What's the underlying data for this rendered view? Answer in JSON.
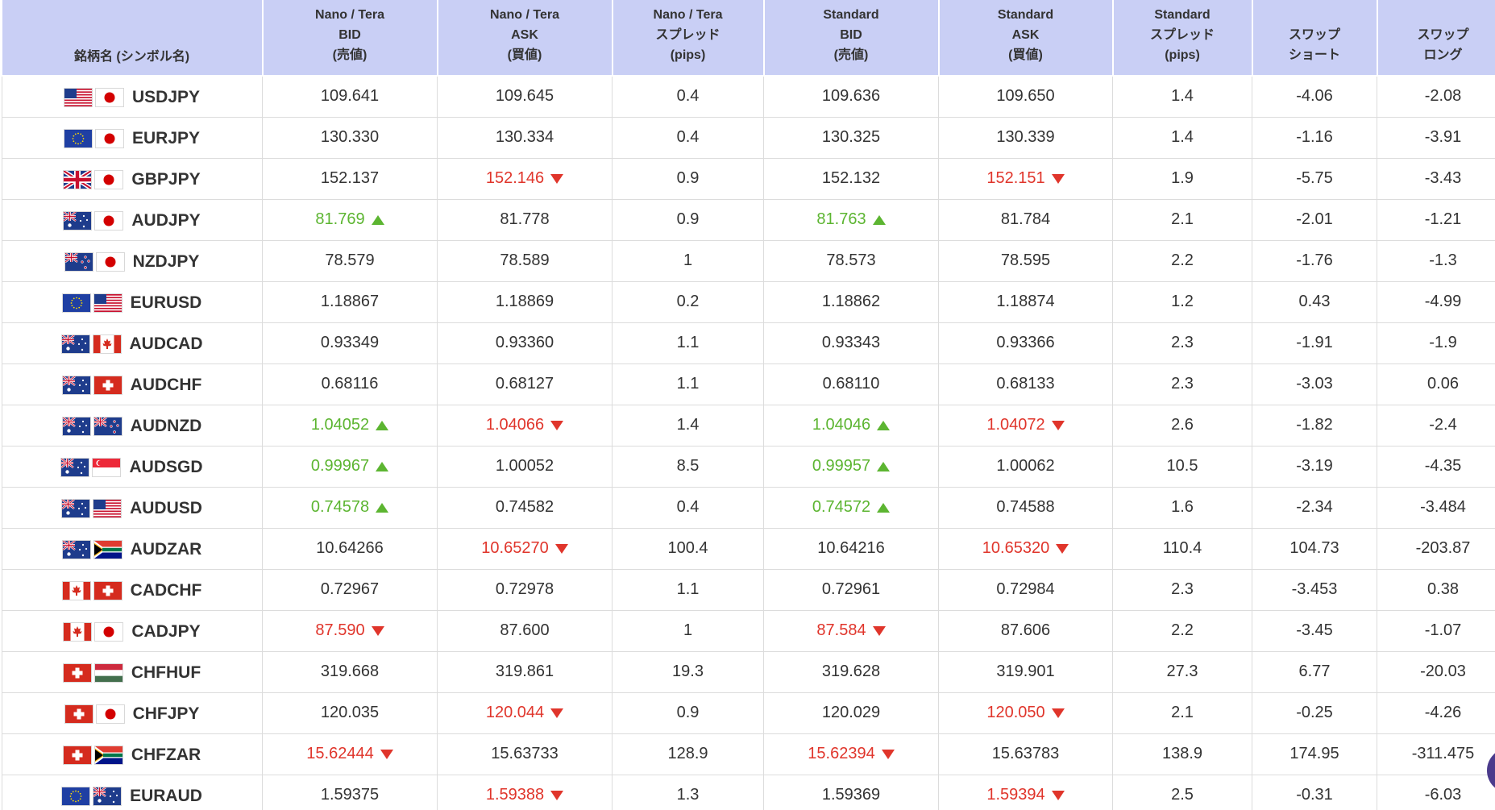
{
  "headers": [
    {
      "lines": [
        "銘柄名 (シンボル名)"
      ]
    },
    {
      "lines": [
        "Nano / Tera",
        "BID",
        "(売値)"
      ]
    },
    {
      "lines": [
        "Nano / Tera",
        "ASK",
        "(買値)"
      ]
    },
    {
      "lines": [
        "Nano / Tera",
        "スプレッド",
        "(pips)"
      ]
    },
    {
      "lines": [
        "Standard",
        "BID",
        "(売値)"
      ]
    },
    {
      "lines": [
        "Standard",
        "ASK",
        "(買値)"
      ]
    },
    {
      "lines": [
        "Standard",
        "スプレッド",
        "(pips)"
      ]
    },
    {
      "lines": [
        "スワップ",
        "ショート"
      ]
    },
    {
      "lines": [
        "スワップ",
        "ロング"
      ]
    }
  ],
  "rows": [
    {
      "symbol": "USDJPY",
      "flags": [
        "us-flag-icon",
        "jp-flag-icon"
      ],
      "cells": [
        {
          "v": "109.641",
          "d": ""
        },
        {
          "v": "109.645",
          "d": ""
        },
        {
          "v": "0.4",
          "d": ""
        },
        {
          "v": "109.636",
          "d": ""
        },
        {
          "v": "109.650",
          "d": ""
        },
        {
          "v": "1.4",
          "d": ""
        },
        {
          "v": "-4.06",
          "d": ""
        },
        {
          "v": "-2.08",
          "d": ""
        }
      ]
    },
    {
      "symbol": "EURJPY",
      "flags": [
        "eu-flag-icon",
        "jp-flag-icon"
      ],
      "cells": [
        {
          "v": "130.330",
          "d": ""
        },
        {
          "v": "130.334",
          "d": ""
        },
        {
          "v": "0.4",
          "d": ""
        },
        {
          "v": "130.325",
          "d": ""
        },
        {
          "v": "130.339",
          "d": ""
        },
        {
          "v": "1.4",
          "d": ""
        },
        {
          "v": "-1.16",
          "d": ""
        },
        {
          "v": "-3.91",
          "d": ""
        }
      ]
    },
    {
      "symbol": "GBPJPY",
      "flags": [
        "gb-flag-icon",
        "jp-flag-icon"
      ],
      "cells": [
        {
          "v": "152.137",
          "d": ""
        },
        {
          "v": "152.146",
          "d": "down"
        },
        {
          "v": "0.9",
          "d": ""
        },
        {
          "v": "152.132",
          "d": ""
        },
        {
          "v": "152.151",
          "d": "down"
        },
        {
          "v": "1.9",
          "d": ""
        },
        {
          "v": "-5.75",
          "d": ""
        },
        {
          "v": "-3.43",
          "d": ""
        }
      ]
    },
    {
      "symbol": "AUDJPY",
      "flags": [
        "au-flag-icon",
        "jp-flag-icon"
      ],
      "cells": [
        {
          "v": "81.769",
          "d": "up"
        },
        {
          "v": "81.778",
          "d": ""
        },
        {
          "v": "0.9",
          "d": ""
        },
        {
          "v": "81.763",
          "d": "up"
        },
        {
          "v": "81.784",
          "d": ""
        },
        {
          "v": "2.1",
          "d": ""
        },
        {
          "v": "-2.01",
          "d": ""
        },
        {
          "v": "-1.21",
          "d": ""
        }
      ]
    },
    {
      "symbol": "NZDJPY",
      "flags": [
        "nz-flag-icon",
        "jp-flag-icon"
      ],
      "cells": [
        {
          "v": "78.579",
          "d": ""
        },
        {
          "v": "78.589",
          "d": ""
        },
        {
          "v": "1",
          "d": ""
        },
        {
          "v": "78.573",
          "d": ""
        },
        {
          "v": "78.595",
          "d": ""
        },
        {
          "v": "2.2",
          "d": ""
        },
        {
          "v": "-1.76",
          "d": ""
        },
        {
          "v": "-1.3",
          "d": ""
        }
      ]
    },
    {
      "symbol": "EURUSD",
      "flags": [
        "eu-flag-icon",
        "us-flag-icon"
      ],
      "cells": [
        {
          "v": "1.18867",
          "d": ""
        },
        {
          "v": "1.18869",
          "d": ""
        },
        {
          "v": "0.2",
          "d": ""
        },
        {
          "v": "1.18862",
          "d": ""
        },
        {
          "v": "1.18874",
          "d": ""
        },
        {
          "v": "1.2",
          "d": ""
        },
        {
          "v": "0.43",
          "d": ""
        },
        {
          "v": "-4.99",
          "d": ""
        }
      ]
    },
    {
      "symbol": "AUDCAD",
      "flags": [
        "au-flag-icon",
        "ca-flag-icon"
      ],
      "cells": [
        {
          "v": "0.93349",
          "d": ""
        },
        {
          "v": "0.93360",
          "d": ""
        },
        {
          "v": "1.1",
          "d": ""
        },
        {
          "v": "0.93343",
          "d": ""
        },
        {
          "v": "0.93366",
          "d": ""
        },
        {
          "v": "2.3",
          "d": ""
        },
        {
          "v": "-1.91",
          "d": ""
        },
        {
          "v": "-1.9",
          "d": ""
        }
      ]
    },
    {
      "symbol": "AUDCHF",
      "flags": [
        "au-flag-icon",
        "ch-flag-icon"
      ],
      "cells": [
        {
          "v": "0.68116",
          "d": ""
        },
        {
          "v": "0.68127",
          "d": ""
        },
        {
          "v": "1.1",
          "d": ""
        },
        {
          "v": "0.68110",
          "d": ""
        },
        {
          "v": "0.68133",
          "d": ""
        },
        {
          "v": "2.3",
          "d": ""
        },
        {
          "v": "-3.03",
          "d": ""
        },
        {
          "v": "0.06",
          "d": ""
        }
      ]
    },
    {
      "symbol": "AUDNZD",
      "flags": [
        "au-flag-icon",
        "nz-flag-icon"
      ],
      "cells": [
        {
          "v": "1.04052",
          "d": "up"
        },
        {
          "v": "1.04066",
          "d": "down"
        },
        {
          "v": "1.4",
          "d": ""
        },
        {
          "v": "1.04046",
          "d": "up"
        },
        {
          "v": "1.04072",
          "d": "down"
        },
        {
          "v": "2.6",
          "d": ""
        },
        {
          "v": "-1.82",
          "d": ""
        },
        {
          "v": "-2.4",
          "d": ""
        }
      ]
    },
    {
      "symbol": "AUDSGD",
      "flags": [
        "au-flag-icon",
        "sg-flag-icon"
      ],
      "cells": [
        {
          "v": "0.99967",
          "d": "up"
        },
        {
          "v": "1.00052",
          "d": ""
        },
        {
          "v": "8.5",
          "d": ""
        },
        {
          "v": "0.99957",
          "d": "up"
        },
        {
          "v": "1.00062",
          "d": ""
        },
        {
          "v": "10.5",
          "d": ""
        },
        {
          "v": "-3.19",
          "d": ""
        },
        {
          "v": "-4.35",
          "d": ""
        }
      ]
    },
    {
      "symbol": "AUDUSD",
      "flags": [
        "au-flag-icon",
        "us-flag-icon"
      ],
      "cells": [
        {
          "v": "0.74578",
          "d": "up"
        },
        {
          "v": "0.74582",
          "d": ""
        },
        {
          "v": "0.4",
          "d": ""
        },
        {
          "v": "0.74572",
          "d": "up"
        },
        {
          "v": "0.74588",
          "d": ""
        },
        {
          "v": "1.6",
          "d": ""
        },
        {
          "v": "-2.34",
          "d": ""
        },
        {
          "v": "-3.484",
          "d": ""
        }
      ]
    },
    {
      "symbol": "AUDZAR",
      "flags": [
        "au-flag-icon",
        "za-flag-icon"
      ],
      "cells": [
        {
          "v": "10.64266",
          "d": ""
        },
        {
          "v": "10.65270",
          "d": "down"
        },
        {
          "v": "100.4",
          "d": ""
        },
        {
          "v": "10.64216",
          "d": ""
        },
        {
          "v": "10.65320",
          "d": "down"
        },
        {
          "v": "110.4",
          "d": ""
        },
        {
          "v": "104.73",
          "d": ""
        },
        {
          "v": "-203.87",
          "d": ""
        }
      ]
    },
    {
      "symbol": "CADCHF",
      "flags": [
        "ca-flag-icon",
        "ch-flag-icon"
      ],
      "cells": [
        {
          "v": "0.72967",
          "d": ""
        },
        {
          "v": "0.72978",
          "d": ""
        },
        {
          "v": "1.1",
          "d": ""
        },
        {
          "v": "0.72961",
          "d": ""
        },
        {
          "v": "0.72984",
          "d": ""
        },
        {
          "v": "2.3",
          "d": ""
        },
        {
          "v": "-3.453",
          "d": ""
        },
        {
          "v": "0.38",
          "d": ""
        }
      ]
    },
    {
      "symbol": "CADJPY",
      "flags": [
        "ca-flag-icon",
        "jp-flag-icon"
      ],
      "cells": [
        {
          "v": "87.590",
          "d": "down"
        },
        {
          "v": "87.600",
          "d": ""
        },
        {
          "v": "1",
          "d": ""
        },
        {
          "v": "87.584",
          "d": "down"
        },
        {
          "v": "87.606",
          "d": ""
        },
        {
          "v": "2.2",
          "d": ""
        },
        {
          "v": "-3.45",
          "d": ""
        },
        {
          "v": "-1.07",
          "d": ""
        }
      ]
    },
    {
      "symbol": "CHFHUF",
      "flags": [
        "ch-flag-icon",
        "hu-flag-icon"
      ],
      "cells": [
        {
          "v": "319.668",
          "d": ""
        },
        {
          "v": "319.861",
          "d": ""
        },
        {
          "v": "19.3",
          "d": ""
        },
        {
          "v": "319.628",
          "d": ""
        },
        {
          "v": "319.901",
          "d": ""
        },
        {
          "v": "27.3",
          "d": ""
        },
        {
          "v": "6.77",
          "d": ""
        },
        {
          "v": "-20.03",
          "d": ""
        }
      ]
    },
    {
      "symbol": "CHFJPY",
      "flags": [
        "ch-flag-icon",
        "jp-flag-icon"
      ],
      "cells": [
        {
          "v": "120.035",
          "d": ""
        },
        {
          "v": "120.044",
          "d": "down"
        },
        {
          "v": "0.9",
          "d": ""
        },
        {
          "v": "120.029",
          "d": ""
        },
        {
          "v": "120.050",
          "d": "down"
        },
        {
          "v": "2.1",
          "d": ""
        },
        {
          "v": "-0.25",
          "d": ""
        },
        {
          "v": "-4.26",
          "d": ""
        }
      ]
    },
    {
      "symbol": "CHFZAR",
      "flags": [
        "ch-flag-icon",
        "za-flag-icon"
      ],
      "cells": [
        {
          "v": "15.62444",
          "d": "down"
        },
        {
          "v": "15.63733",
          "d": ""
        },
        {
          "v": "128.9",
          "d": ""
        },
        {
          "v": "15.62394",
          "d": "down"
        },
        {
          "v": "15.63783",
          "d": ""
        },
        {
          "v": "138.9",
          "d": ""
        },
        {
          "v": "174.95",
          "d": ""
        },
        {
          "v": "-311.475",
          "d": ""
        }
      ]
    },
    {
      "symbol": "EURAUD",
      "flags": [
        "eu-flag-icon",
        "au-flag-icon"
      ],
      "cells": [
        {
          "v": "1.59375",
          "d": ""
        },
        {
          "v": "1.59388",
          "d": "down"
        },
        {
          "v": "1.3",
          "d": ""
        },
        {
          "v": "1.59369",
          "d": ""
        },
        {
          "v": "1.59394",
          "d": "down"
        },
        {
          "v": "2.5",
          "d": ""
        },
        {
          "v": "-0.31",
          "d": ""
        },
        {
          "v": "-6.03",
          "d": ""
        }
      ]
    }
  ],
  "colors": {
    "header_bg": "#c9cff5",
    "up": "#5cb531",
    "down": "#e0352b",
    "text": "#333333",
    "chat_bubble": "#4b3b8c"
  }
}
